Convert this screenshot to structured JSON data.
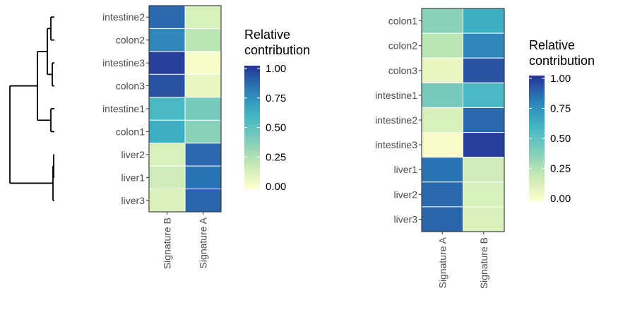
{
  "colors": {
    "scale": [
      "#ffffcc",
      "#c7e9b4",
      "#7fcdbb",
      "#41b6c4",
      "#2c7fb8",
      "#253494"
    ],
    "border": "#333333",
    "tick": "#333333",
    "dendrogram": "#000000"
  },
  "chart_data": [
    {
      "type": "heatmap",
      "rows": [
        "intestine2",
        "colon2",
        "intestine3",
        "colon3",
        "intestine1",
        "colon1",
        "liver2",
        "liver1",
        "liver3"
      ],
      "columns": [
        "Signature B",
        "Signature A"
      ],
      "values": [
        [
          0.86,
          0.14
        ],
        [
          0.77,
          0.23
        ],
        [
          0.97,
          0.03
        ],
        [
          0.92,
          0.08
        ],
        [
          0.57,
          0.43
        ],
        [
          0.63,
          0.37
        ],
        [
          0.14,
          0.86
        ],
        [
          0.17,
          0.83
        ],
        [
          0.13,
          0.87
        ]
      ],
      "legend": {
        "title_lines": [
          "Relative",
          "contribution"
        ],
        "ticks": [
          "1.00",
          "0.75",
          "0.50",
          "0.25",
          "0.00"
        ]
      },
      "dendrogram": true
    },
    {
      "type": "heatmap",
      "rows": [
        "colon1",
        "colon2",
        "colon3",
        "intestine1",
        "intestine2",
        "intestine3",
        "liver1",
        "liver2",
        "liver3"
      ],
      "columns": [
        "Signature A",
        "Signature B"
      ],
      "values": [
        [
          0.37,
          0.63
        ],
        [
          0.23,
          0.77
        ],
        [
          0.08,
          0.92
        ],
        [
          0.43,
          0.57
        ],
        [
          0.14,
          0.86
        ],
        [
          0.03,
          0.97
        ],
        [
          0.83,
          0.17
        ],
        [
          0.86,
          0.14
        ],
        [
          0.87,
          0.13
        ]
      ],
      "legend": {
        "title_lines": [
          "Relative",
          "contribution"
        ],
        "ticks": [
          "1.00",
          "0.75",
          "0.50",
          "0.25",
          "0.00"
        ]
      },
      "dendrogram": false
    }
  ]
}
